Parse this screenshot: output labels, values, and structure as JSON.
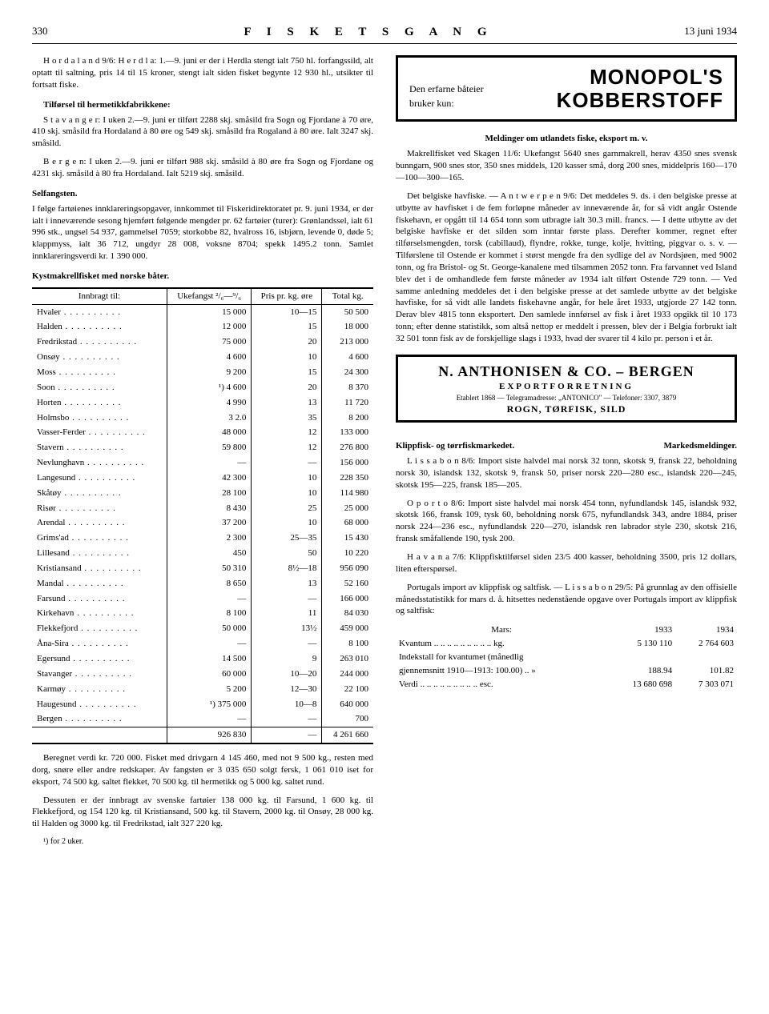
{
  "header": {
    "page_number": "330",
    "title": "F I S K E T S   G A N G",
    "date": "13 juni 1934"
  },
  "left": {
    "hordaland_para": "H o r d a l a n d 9/6: H e r d l a: 1.—9. juni er der i Herdla stengt ialt 750 hl. forfangssild, alt optatt til saltning, pris 14 til 15 kroner, stengt ialt siden fisket begynte 12 930 hl., utsikter til fortsatt fiske.",
    "tilforsel_head": "Tilførsel til hermetikkfabrikkene:",
    "stavanger_para": "S t a v a n g e r: I uken 2.—9. juni er tilført 2288 skj. småsild fra Sogn og Fjordane à 70 øre, 410 skj. småsild fra Hordaland à 80 øre og 549 skj. småsild fra Rogaland à 80 øre. Ialt 3247 skj. småsild.",
    "bergen_para": "B e r g e n: I uken 2.—9. juni er tilført 988 skj. småsild à 80 øre fra Sogn og Fjordane og 4231 skj. småsild à 80 fra Hordaland. Ialt 5219 skj. småsild.",
    "seilfangsten_head": "Selfangsten.",
    "seilfangsten_para": "I følge fartøienes innklareringsopgaver, innkommet til Fiskeridirektoratet pr. 9. juni 1934, er der ialt i inneværende sesong hjemført følgende mengder pr. 62 fartøier (turer): Grønlandssel, ialt 61 996 stk., ungsel 54 937, gammelsel 7059; storkobbe 82, hvalross 16, isbjørn, levende 0, døde 5; klappmyss, ialt 36 712, ungdyr 28 008, voksne 8704; spekk 1495.2 tonn. Samlet innklareringsverdi kr. 1 390 000.",
    "table_head": "Kystmakrellfisket med norske båter.",
    "table_cols": [
      "Innbragt til:",
      "Ukefangst ²/₆—⁹/₆",
      "Pris pr. kg. øre",
      "Total kg."
    ],
    "table_rows": [
      [
        "Hvaler",
        "15 000",
        "10—15",
        "50 500"
      ],
      [
        "Halden",
        "12 000",
        "15",
        "18 000"
      ],
      [
        "Fredrikstad",
        "75 000",
        "20",
        "213 000"
      ],
      [
        "Onsøy",
        "4 600",
        "10",
        "4 600"
      ],
      [
        "Moss",
        "9 200",
        "15",
        "24 300"
      ],
      [
        "Soon",
        "¹) 4 600",
        "20",
        "8 370"
      ],
      [
        "Horten",
        "4 990",
        "13",
        "11 720"
      ],
      [
        "Holmsbo",
        "3 2.0",
        "35",
        "8 200"
      ],
      [
        "Vasser-Ferder",
        "48 000",
        "12",
        "133 000"
      ],
      [
        "Stavern",
        "59 800",
        "12",
        "276 800"
      ],
      [
        "Nevlunghavn",
        "—",
        "—",
        "156 000"
      ],
      [
        "Langesund",
        "42 300",
        "10",
        "228 350"
      ],
      [
        "Skåtøy",
        "28 100",
        "10",
        "114 980"
      ],
      [
        "Risør",
        "8 430",
        "25",
        "25 000"
      ],
      [
        "Arendal",
        "37 200",
        "10",
        "68 000"
      ],
      [
        "Grims'ad",
        "2 300",
        "25—35",
        "15 430"
      ],
      [
        "Lillesand",
        "450",
        "50",
        "10 220"
      ],
      [
        "Kristiansand",
        "50 310",
        "8½—18",
        "956 090"
      ],
      [
        "Mandal",
        "8 650",
        "13",
        "52 160"
      ],
      [
        "Farsund",
        "—",
        "—",
        "166 000"
      ],
      [
        "Kirkehavn",
        "8 100",
        "11",
        "84 030"
      ],
      [
        "Flekkefjord",
        "50 000",
        "13½",
        "459 000"
      ],
      [
        "Åna-Sira",
        "—",
        "—",
        "8 100"
      ],
      [
        "Egersund",
        "14 500",
        "9",
        "263 010"
      ],
      [
        "Stavanger",
        "60 000",
        "10—20",
        "244 000"
      ],
      [
        "Karmøy",
        "5 200",
        "12—30",
        "22 100"
      ],
      [
        "Haugesund",
        "¹) 375 000",
        "10—8",
        "640 000"
      ],
      [
        "Bergen",
        "—",
        "—",
        "700"
      ]
    ],
    "table_total": [
      "",
      "926 830",
      "—",
      "4 261 660"
    ],
    "after_table_p1": "Beregnet verdi kr. 720 000. Fisket med drivgarn 4 145 460, med not 9 500 kg., resten med dorg, snøre eller andre redskaper. Av fangsten er 3 035 650 solgt fersk, 1 061 010 iset for eksport, 74 500 kg. saltet flekket, 70 500 kg. til hermetikk og 5 000 kg. saltet rund.",
    "after_table_p2": "Dessuten er der innbragt av svenske fartøier 138 000 kg. til Farsund, 1 600 kg. til Flekkefjord, og 154 120 kg. til Kristiansand, 500 kg. til Stavern, 2000 kg. til Onsøy, 28 000 kg. til Halden og 3000 kg. til Fredrikstad, ialt 327 220 kg.",
    "footnote": "¹) for 2 uker."
  },
  "right": {
    "ad1_top1": "Den erfarne båteier",
    "ad1_top2": "bruker kun:",
    "ad1_big1": "MONOPOL'S",
    "ad1_big2": "KOBBERSTOFF",
    "meld_head": "Meldinger om utlandets fiske, eksport m. v.",
    "makrell_para": "Makrellfisket ved Skagen 11/6: Ukefangst 5640 snes garnmakrell, herav 4350 snes svensk bunngarn, 900 snes stor, 350 snes middels, 120 kasser små, dorg 200 snes, middelpris 160—170—100—300—165.",
    "belgiske_para": "Det belgiske havfiske. — A n t w e r p e n 9/6: Det meddeles 9. ds. i den belgiske presse at utbytte av havfisket i de fem forløpne måneder av inneværende år, for så vidt angår Ostende fiskehavn, er opgått til 14 654 tonn som utbragte ialt 30.3 mill. francs. — I dette utbytte av det belgiske havfiske er det silden som inntar første plass. Derefter kommer, regnet efter tilførselsmengden, torsk (cabillaud), flyndre, rokke, tunge, kolje, hvitting, piggvar o. s. v. — Tilførslene til Ostende er kommet i størst mengde fra den sydlige del av Nordsjøen, med 9002 tonn, og fra Bristol- og St. George-kanalene med tilsammen 2052 tonn. Fra farvannet ved Island blev det i de omhandlede fem første måneder av 1934 ialt tilført Ostende 729 tonn. — Ved samme anledning meddeles det i den belgiske presse at det samlede utbytte av det belgiske havfiske, for så vidt alle landets fiskehavne angår, for hele året 1933, utgjorde 27 142 tonn. Derav blev 4815 tonn eksportert. Den samlede innførsel av fisk i året 1933 opgikk til 10 173 tonn; efter denne statistikk, som altså nettop er meddelt i pressen, blev der i Belgia forbrukt ialt 32 501 tonn fisk av de forskjellige slags i 1933, hvad der svarer til 4 kilo pr. person i et år.",
    "ad2_line1": "N. ANTHONISEN & CO. – BERGEN",
    "ad2_line2": "EXPORTFORRETNING",
    "ad2_line3": "Etablert 1868 — Telegramadresse: „ANTONICO\" — Telefoner: 3307, 3879",
    "ad2_line4": "ROGN, TØRFISK, SILD",
    "klipp_head_left": "Klippfisk- og tørrfiskmarkedet.",
    "klipp_head_right": "Markedsmeldinger.",
    "lissabon_para": "L i s s a b o n 8/6: Import siste halvdel mai norsk 32 tonn, skotsk 9, fransk 22, beholdning norsk 30, islandsk 132, skotsk 9, fransk 50, priser norsk 220—280 esc., islandsk 220—245, skotsk 195—225, fransk 185—205.",
    "oporto_para": "O p o r t o 8/6: Import siste halvdel mai norsk 454 tonn, nyfundlandsk 145, islandsk 932, skotsk 166, fransk 109, tysk 60, beholdning norsk 675, nyfundlandsk 343, andre 1884, priser norsk 224—236 esc., nyfundlandsk 220—270, islandsk ren labrador style 230, skotsk 216, fransk småfallende 190, tysk 200.",
    "havana_para": "H a v a n a 7/6: Klippfisktilførsel siden 23/5 400 kasser, beholdning 3500, pris 12 dollars, liten efterspørsel.",
    "portugal_intro": "Portugals import av klippfisk og saltfisk. — L i s s a b o n 29/5: På grunnlag av den offisielle månedsstatistikk for mars d. å. hitsettes nedenstående opgave over Portugals import av klippfisk og saltfisk:",
    "pt_head_mars": "Mars:",
    "pt_head_1933": "1933",
    "pt_head_1934": "1934",
    "pt_rows": [
      [
        "Kvantum .. .. .. .. .. .. .. .. .. kg.",
        "5 130 110",
        "2 764 603"
      ],
      [
        "Indekstall for kvantumet (månedlig",
        "",
        ""
      ],
      [
        "  gjennemsnitt 1910—1913: 100.00) ..  »",
        "188.94",
        "101.82"
      ],
      [
        "Verdi .. .. .. .. .. .. .. .. .. esc.",
        "13 680 698",
        "7 303 071"
      ]
    ]
  }
}
